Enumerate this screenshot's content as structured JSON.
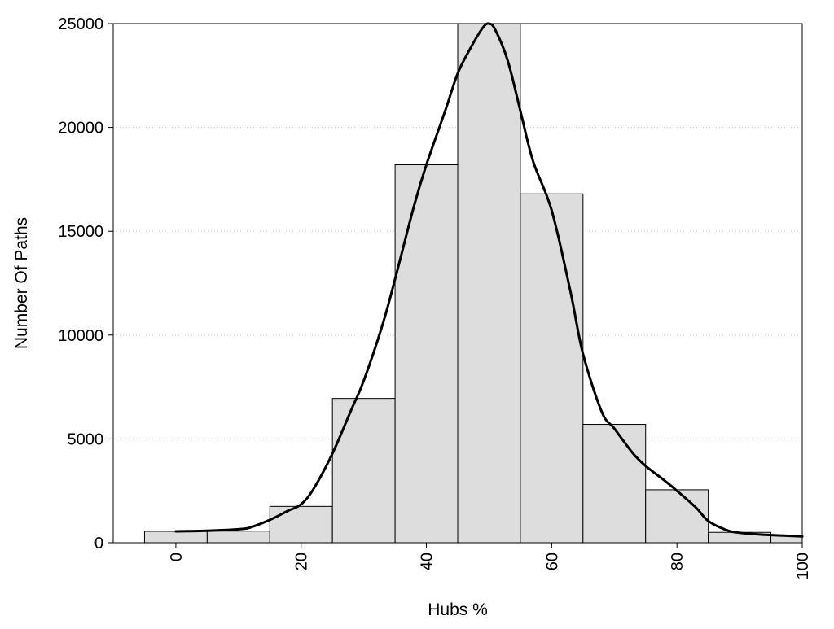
{
  "chart_data": {
    "type": "bar",
    "title": "",
    "xlabel": "Hubs %",
    "ylabel": "Number Of Paths",
    "xlim": [
      -10,
      100
    ],
    "ylim": [
      0,
      25000
    ],
    "x_ticks": [
      "0",
      "20",
      "40",
      "60",
      "80",
      "100"
    ],
    "x_tick_values": [
      0,
      20,
      40,
      60,
      80,
      100
    ],
    "y_ticks": [
      "0",
      "5000",
      "10000",
      "15000",
      "20000",
      "25000"
    ],
    "y_tick_values": [
      0,
      5000,
      10000,
      15000,
      20000,
      25000
    ],
    "bins": [
      {
        "from": -5,
        "to": 5,
        "value": 550
      },
      {
        "from": 5,
        "to": 15,
        "value": 560
      },
      {
        "from": 15,
        "to": 25,
        "value": 1750
      },
      {
        "from": 25,
        "to": 35,
        "value": 6950
      },
      {
        "from": 35,
        "to": 45,
        "value": 18200
      },
      {
        "from": 45,
        "to": 55,
        "value": 25000
      },
      {
        "from": 55,
        "to": 65,
        "value": 16800
      },
      {
        "from": 65,
        "to": 75,
        "value": 5700
      },
      {
        "from": 75,
        "to": 85,
        "value": 2550
      },
      {
        "from": 85,
        "to": 95,
        "value": 500
      },
      {
        "from": 95,
        "to": 105,
        "value": 350
      }
    ],
    "density_curve": {
      "x": [
        0,
        5,
        10,
        12,
        15,
        18,
        20,
        22,
        25,
        28,
        30,
        33,
        35,
        38,
        40,
        43,
        45,
        47,
        49,
        50,
        51,
        53,
        55,
        57,
        60,
        63,
        65,
        68,
        70,
        73,
        75,
        78,
        80,
        83,
        85,
        88,
        90,
        93,
        95,
        100
      ],
      "y": [
        550,
        580,
        650,
        750,
        1100,
        1550,
        1850,
        2600,
        4300,
        6400,
        7800,
        10500,
        12700,
        16200,
        18200,
        20800,
        22600,
        23800,
        24800,
        25000,
        24700,
        23200,
        20800,
        18400,
        16000,
        12100,
        9100,
        6300,
        5500,
        4300,
        3700,
        3000,
        2500,
        1700,
        1050,
        600,
        480,
        400,
        370,
        300
      ]
    },
    "grid": true,
    "bar_color": "#dddddd",
    "line_color": "#000000",
    "legend": "none"
  }
}
